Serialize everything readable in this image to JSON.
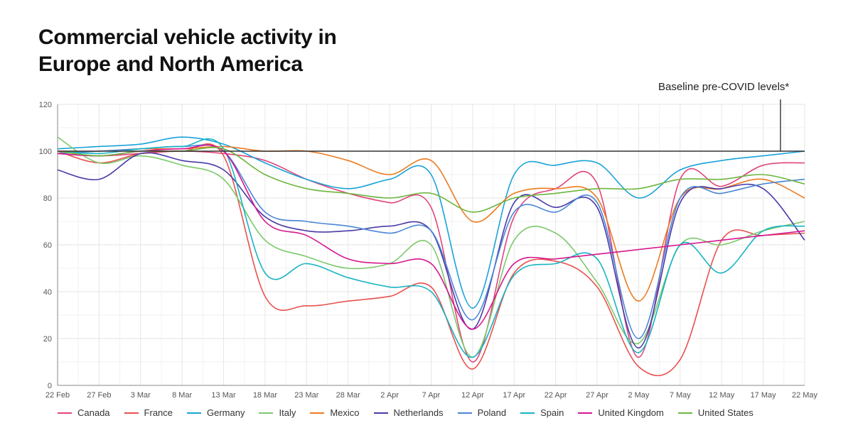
{
  "chart_data": {
    "type": "line",
    "title": "Commercial vehicle activity in Europe and North America",
    "annotation": "Baseline pre-COVID levels*",
    "baseline": 100,
    "ylim": [
      0,
      120
    ],
    "yticks": [
      0,
      20,
      40,
      60,
      80,
      100,
      120
    ],
    "x": [
      "22 Feb",
      "27 Feb",
      "3 Mar",
      "8 Mar",
      "13 Mar",
      "18 Mar",
      "23 Mar",
      "28 Mar",
      "2 Apr",
      "7 Apr",
      "12 Apr",
      "17 Apr",
      "22 Apr",
      "27 Apr",
      "2 May",
      "7 May",
      "12 May",
      "17 May",
      "22 May"
    ],
    "grid": true,
    "legend_position": "bottom",
    "series": [
      {
        "name": "Canada",
        "color": "#e0457b",
        "values": [
          99,
          98,
          99,
          100,
          99,
          96,
          88,
          82,
          78,
          76,
          10,
          72,
          84,
          86,
          12,
          88,
          85,
          94,
          95
        ]
      },
      {
        "name": "France",
        "color": "#e8514f",
        "values": [
          100,
          95,
          99,
          100,
          98,
          38,
          34,
          36,
          38,
          42,
          7,
          48,
          53,
          42,
          8,
          11,
          62,
          64,
          65
        ]
      },
      {
        "name": "Germany",
        "color": "#1aa3d9",
        "values": [
          101,
          102,
          103,
          106,
          103,
          95,
          88,
          84,
          88,
          90,
          33,
          90,
          94,
          95,
          80,
          92,
          96,
          98,
          100
        ]
      },
      {
        "name": "Italy",
        "color": "#7cc96b",
        "values": [
          106,
          95,
          98,
          94,
          88,
          62,
          55,
          50,
          52,
          60,
          12,
          62,
          65,
          44,
          18,
          60,
          60,
          66,
          70
        ]
      },
      {
        "name": "Mexico",
        "color": "#ec7a1f",
        "values": [
          100,
          100,
          101,
          101,
          102,
          100,
          100,
          96,
          90,
          96,
          70,
          82,
          84,
          80,
          36,
          80,
          84,
          88,
          80
        ]
      },
      {
        "name": "Netherlands",
        "color": "#4a3aa8",
        "values": [
          92,
          88,
          99,
          96,
          92,
          72,
          66,
          66,
          68,
          66,
          24,
          78,
          76,
          76,
          16,
          78,
          84,
          84,
          62
        ]
      },
      {
        "name": "Poland",
        "color": "#4a86d6",
        "values": [
          99,
          100,
          101,
          102,
          100,
          74,
          70,
          68,
          65,
          66,
          28,
          74,
          74,
          78,
          20,
          80,
          82,
          86,
          88
        ]
      },
      {
        "name": "Spain",
        "color": "#19b3c4",
        "values": [
          100,
          99,
          101,
          102,
          101,
          48,
          52,
          46,
          42,
          40,
          12,
          47,
          52,
          54,
          14,
          60,
          48,
          66,
          68
        ]
      },
      {
        "name": "United Kingdom",
        "color": "#d6168f",
        "values": [
          99,
          98,
          100,
          101,
          100,
          70,
          64,
          54,
          52,
          52,
          24,
          52,
          54,
          56,
          58,
          60,
          62,
          64,
          66
        ]
      },
      {
        "name": "United States",
        "color": "#6db63f",
        "values": [
          100,
          98,
          100,
          100,
          101,
          90,
          84,
          82,
          80,
          82,
          74,
          80,
          82,
          84,
          84,
          88,
          88,
          90,
          86
        ]
      }
    ]
  }
}
